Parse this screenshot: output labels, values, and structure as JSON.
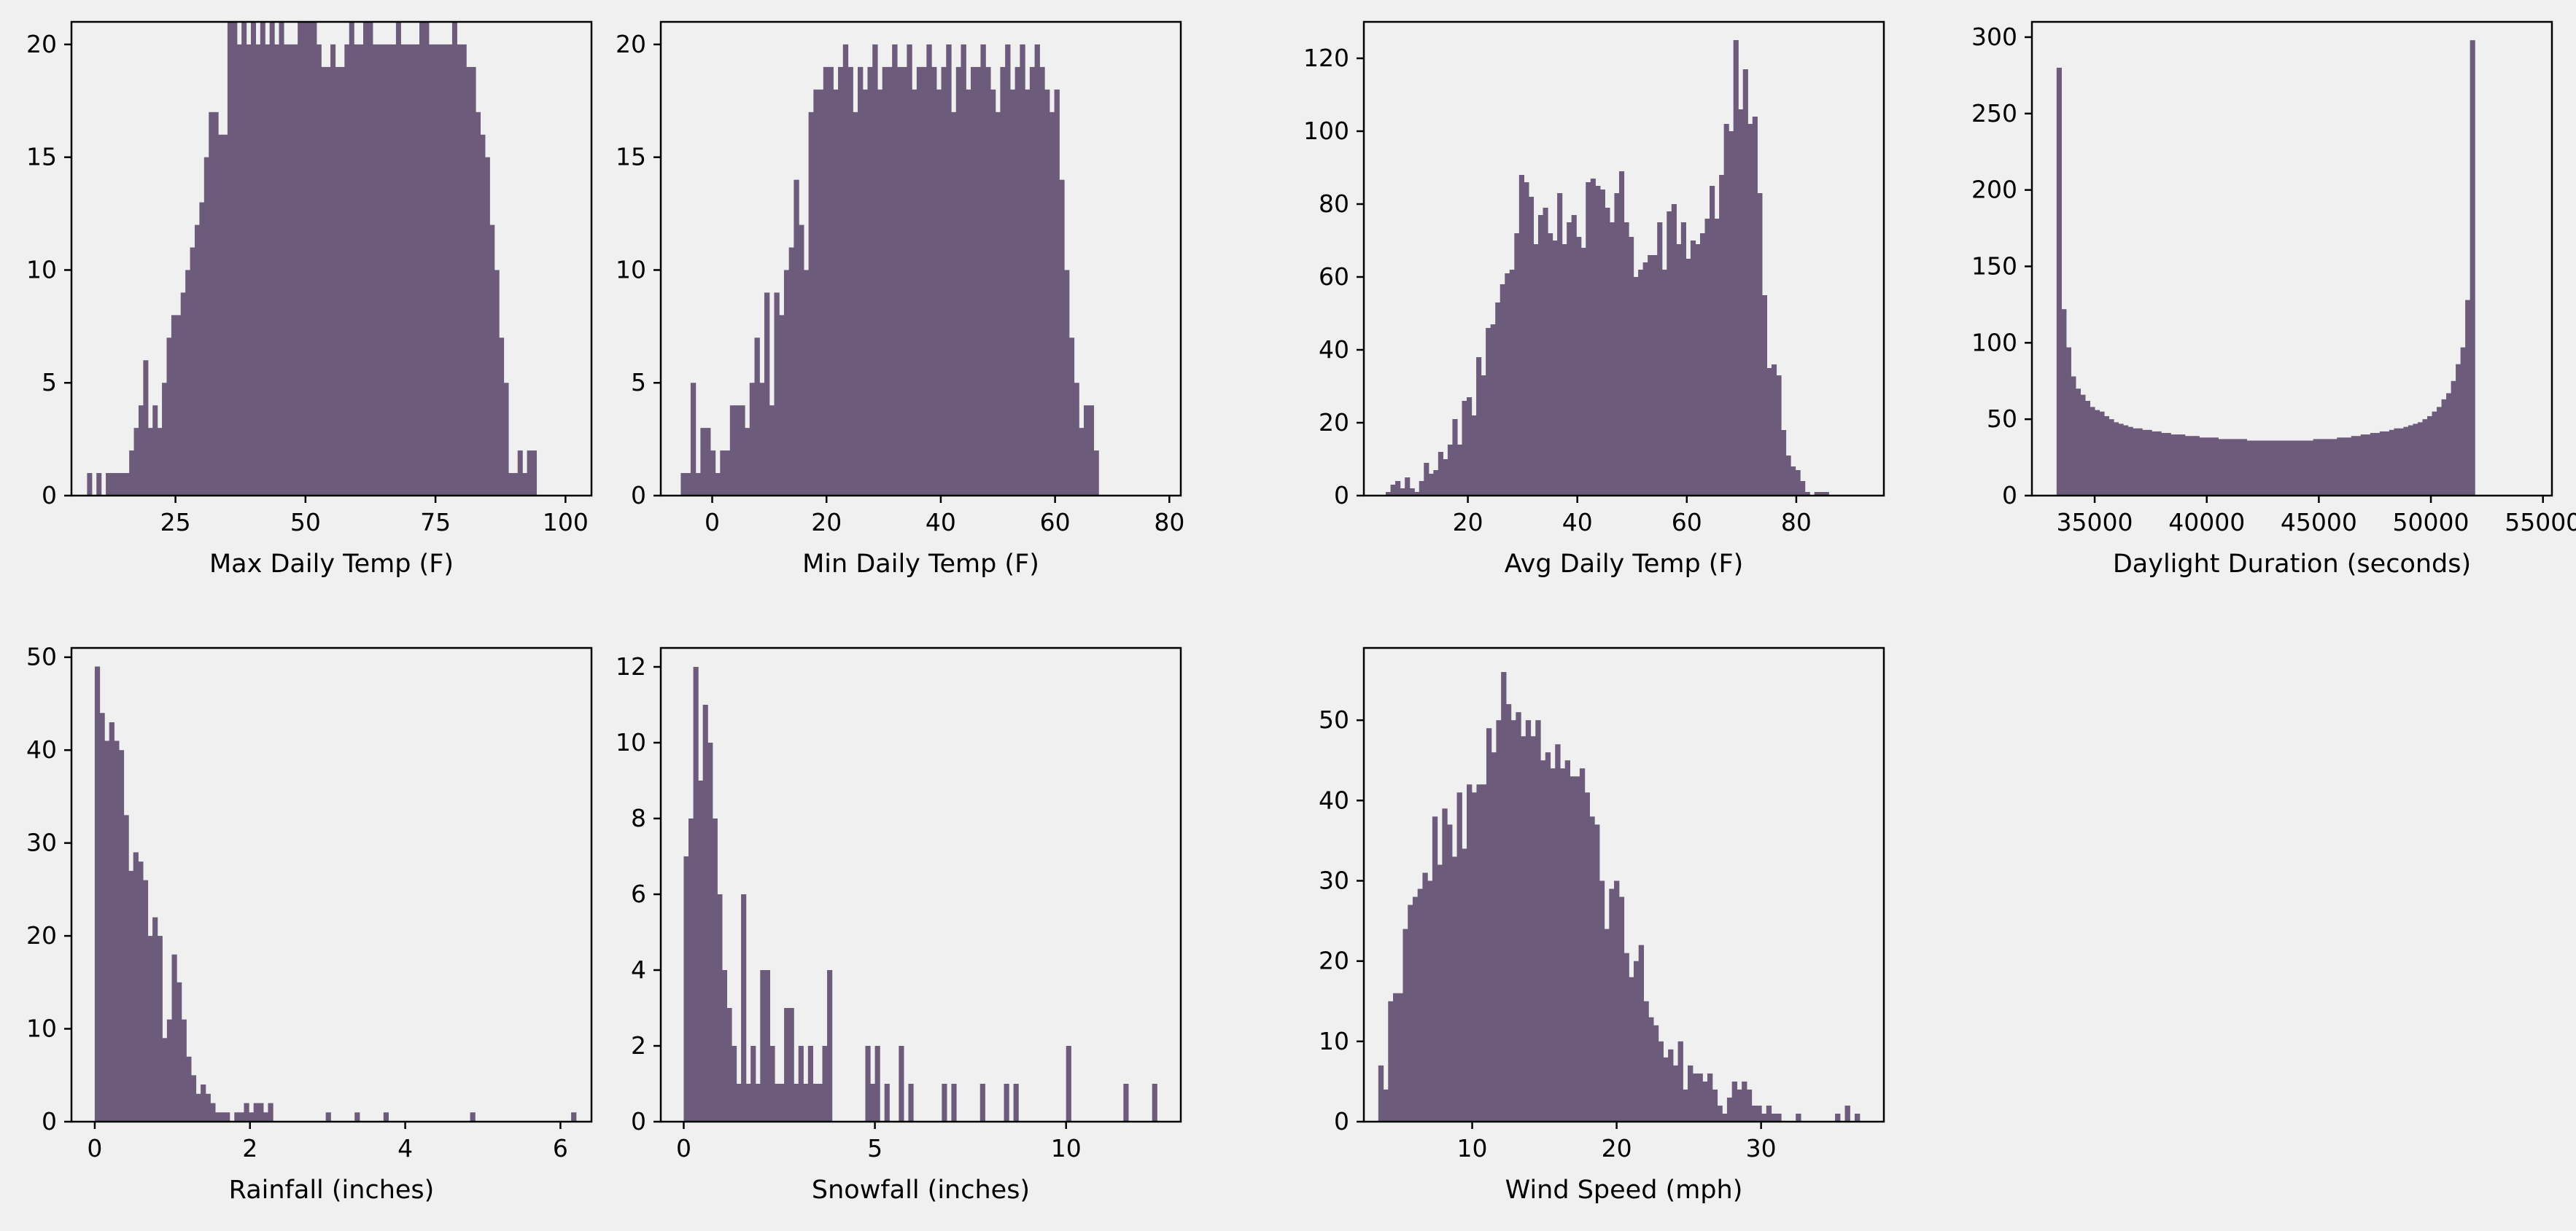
{
  "chart_data": [
    {
      "type": "bar",
      "subtype": "histogram",
      "title": "",
      "xlabel": "Max Daily Temp (F)",
      "ylabel": "",
      "bar_color": "#6c5b7b",
      "xlim": [
        5,
        105
      ],
      "ylim": [
        0,
        21
      ],
      "xticks": [
        25,
        50,
        75,
        100
      ],
      "yticks": [
        0,
        5,
        10,
        15,
        20
      ],
      "bin_start": 8,
      "bin_width": 0.9,
      "counts": [
        1,
        0,
        1,
        0,
        1,
        1,
        1,
        1,
        1,
        2,
        3,
        4,
        6,
        3,
        4,
        3,
        5,
        7,
        8,
        8,
        9,
        10,
        11,
        12,
        13,
        15,
        17,
        17,
        16,
        16,
        21,
        21,
        20,
        21,
        20,
        21,
        20,
        21,
        20,
        21,
        20,
        21,
        20,
        20,
        20,
        21,
        21,
        21,
        21,
        20,
        19,
        19,
        20,
        19,
        19,
        20,
        21,
        20,
        20,
        21,
        21,
        20,
        20,
        20,
        20,
        20,
        21,
        20,
        20,
        20,
        20,
        21,
        21,
        20,
        20,
        20,
        20,
        20,
        21,
        20,
        20,
        19,
        19,
        17,
        16,
        15,
        12,
        10,
        7,
        5,
        1,
        1,
        2,
        1,
        2,
        2
      ]
    },
    {
      "type": "bar",
      "subtype": "histogram",
      "title": "",
      "xlabel": "Min Daily Temp (F)",
      "ylabel": "",
      "bar_color": "#6c5b7b",
      "xlim": [
        -9,
        82
      ],
      "ylim": [
        0,
        21
      ],
      "xticks": [
        0,
        20,
        40,
        60,
        80
      ],
      "yticks": [
        0,
        5,
        10,
        15,
        20
      ],
      "bin_start": -5.5,
      "bin_width": 0.86,
      "counts": [
        1,
        1,
        5,
        1,
        3,
        3,
        2,
        1,
        2,
        2,
        4,
        4,
        4,
        3,
        5,
        7,
        5,
        9,
        4,
        9,
        8,
        10,
        11,
        14,
        12,
        10,
        17,
        18,
        18,
        19,
        19,
        18,
        19,
        20,
        19,
        17,
        19,
        18,
        19,
        20,
        18,
        19,
        19,
        20,
        19,
        19,
        20,
        18,
        19,
        19,
        20,
        19,
        18,
        19,
        20,
        17,
        19,
        20,
        18,
        19,
        19,
        20,
        19,
        18,
        17,
        19,
        20,
        18,
        19,
        20,
        18,
        19,
        20,
        19,
        18,
        17,
        18,
        14,
        10,
        7,
        5,
        3,
        4,
        4,
        2
      ]
    },
    {
      "type": "bar",
      "subtype": "histogram",
      "title": "",
      "xlabel": "Avg Daily Temp (F)",
      "ylabel": "",
      "bar_color": "#6c5b7b",
      "xlim": [
        1,
        96
      ],
      "ylim": [
        0,
        130
      ],
      "xticks": [
        20,
        40,
        60,
        80
      ],
      "yticks": [
        0,
        20,
        40,
        60,
        80,
        100,
        120
      ],
      "bin_start": 5,
      "bin_width": 0.87,
      "counts": [
        1,
        3,
        4,
        2,
        5,
        2,
        1,
        4,
        9,
        6,
        7,
        12,
        10,
        14,
        21,
        14,
        26,
        27,
        22,
        38,
        33,
        46,
        47,
        53,
        58,
        61,
        62,
        72,
        88,
        86,
        82,
        69,
        77,
        79,
        72,
        70,
        83,
        69,
        75,
        77,
        71,
        68,
        86,
        87,
        85,
        84,
        79,
        75,
        83,
        89,
        75,
        71,
        60,
        62,
        64,
        66,
        66,
        75,
        62,
        78,
        80,
        69,
        75,
        65,
        70,
        69,
        72,
        76,
        85,
        76,
        88,
        102,
        100,
        125,
        106,
        117,
        102,
        104,
        83,
        55,
        35,
        36,
        33,
        18,
        11,
        8,
        7,
        4,
        1,
        0,
        1,
        1,
        1,
        0
      ]
    },
    {
      "type": "bar",
      "subtype": "histogram",
      "title": "",
      "xlabel": "Daylight Duration (seconds)",
      "ylabel": "",
      "bar_color": "#6c5b7b",
      "xlim": [
        32200,
        55400
      ],
      "ylim": [
        0,
        310
      ],
      "xticks": [
        35000,
        40000,
        45000,
        50000,
        55000
      ],
      "yticks": [
        0,
        50,
        100,
        150,
        200,
        250,
        300
      ],
      "bin_start": 33300,
      "bin_width": 212,
      "counts": [
        280,
        122,
        97,
        78,
        70,
        66,
        62,
        58,
        56,
        55,
        52,
        50,
        48,
        47,
        46,
        45,
        44,
        44,
        43,
        43,
        42,
        42,
        41,
        41,
        40,
        40,
        40,
        39,
        39,
        39,
        38,
        38,
        38,
        38,
        37,
        37,
        37,
        37,
        37,
        37,
        36,
        36,
        36,
        36,
        36,
        36,
        36,
        36,
        36,
        36,
        36,
        36,
        36,
        36,
        37,
        37,
        37,
        37,
        37,
        38,
        38,
        38,
        39,
        39,
        40,
        40,
        41,
        41,
        42,
        42,
        43,
        44,
        44,
        45,
        46,
        47,
        48,
        50,
        52,
        55,
        58,
        63,
        67,
        75,
        86,
        97,
        128,
        298
      ]
    },
    {
      "type": "bar",
      "subtype": "histogram",
      "title": "",
      "xlabel": "Rainfall (inches)",
      "ylabel": "",
      "bar_color": "#6c5b7b",
      "xlim": [
        -0.3,
        6.4
      ],
      "ylim": [
        0,
        51
      ],
      "xticks": [
        0,
        2,
        4,
        6
      ],
      "yticks": [
        0,
        10,
        20,
        30,
        40,
        50
      ],
      "bin_start": 0,
      "bin_width": 0.062,
      "counts": [
        49,
        44,
        41,
        43,
        41,
        40,
        33,
        27,
        29,
        28,
        26,
        20,
        22,
        20,
        9,
        11,
        18,
        15,
        11,
        7,
        5,
        3,
        4,
        3,
        2,
        1,
        1,
        1,
        0,
        1,
        1,
        2,
        1,
        2,
        2,
        1,
        2,
        0,
        0,
        0,
        0,
        0,
        0,
        0,
        0,
        0,
        0,
        0,
        1,
        0,
        0,
        0,
        0,
        0,
        1,
        0,
        0,
        0,
        0,
        0,
        1,
        0,
        0,
        0,
        0,
        0,
        0,
        0,
        0,
        0,
        0,
        0,
        0,
        0,
        0,
        0,
        0,
        0,
        1,
        0,
        0,
        0,
        0,
        0,
        0,
        0,
        0,
        0,
        0,
        0,
        0,
        0,
        0,
        0,
        0,
        0,
        0,
        0,
        0,
        1
      ]
    },
    {
      "type": "bar",
      "subtype": "histogram",
      "title": "",
      "xlabel": "Snowfall (inches)",
      "ylabel": "",
      "bar_color": "#6c5b7b",
      "xlim": [
        -0.6,
        13
      ],
      "ylim": [
        0,
        12.5
      ],
      "xticks": [
        0,
        5,
        10
      ],
      "yticks": [
        0,
        2,
        4,
        6,
        8,
        10,
        12
      ],
      "bin_start": 0,
      "bin_width": 0.125,
      "counts": [
        7,
        8,
        12,
        9,
        11,
        10,
        8,
        6,
        4,
        3,
        2,
        1,
        6,
        1,
        2,
        1,
        4,
        4,
        2,
        1,
        1,
        3,
        3,
        1,
        2,
        1,
        2,
        1,
        1,
        2,
        4,
        0,
        0,
        0,
        0,
        0,
        0,
        0,
        2,
        1,
        2,
        0,
        1,
        0,
        0,
        2,
        0,
        1,
        0,
        0,
        0,
        0,
        0,
        0,
        1,
        0,
        1,
        0,
        0,
        0,
        0,
        0,
        1,
        0,
        0,
        0,
        0,
        1,
        0,
        1,
        0,
        0,
        0,
        0,
        0,
        0,
        0,
        0,
        0,
        0,
        2,
        0,
        0,
        0,
        0,
        0,
        0,
        0,
        0,
        0,
        0,
        0,
        1,
        0,
        0,
        0,
        0,
        0,
        1,
        0
      ]
    },
    {
      "type": "bar",
      "subtype": "histogram",
      "title": "",
      "xlabel": "Wind Speed (mph)",
      "ylabel": "",
      "bar_color": "#6c5b7b",
      "xlim": [
        2.5,
        38.5
      ],
      "ylim": [
        0,
        59
      ],
      "xticks": [
        10,
        20,
        30
      ],
      "yticks": [
        0,
        10,
        20,
        30,
        40,
        50
      ],
      "bin_start": 3.5,
      "bin_width": 0.34,
      "counts": [
        7,
        4,
        15,
        16,
        16,
        24,
        27,
        28,
        29,
        31,
        30,
        38,
        32,
        39,
        37,
        33,
        41,
        34,
        42,
        41,
        42,
        42,
        49,
        46,
        50,
        56,
        52,
        50,
        51,
        48,
        50,
        48,
        50,
        45,
        46,
        44,
        47,
        44,
        45,
        43,
        43,
        44,
        41,
        38,
        37,
        30,
        24,
        29,
        30,
        28,
        21,
        18,
        20,
        22,
        15,
        13,
        12,
        10,
        8,
        9,
        7,
        10,
        4,
        7,
        6,
        6,
        5,
        6,
        4,
        2,
        1,
        3,
        5,
        4,
        5,
        4,
        2,
        2,
        1,
        2,
        1,
        1,
        0,
        0,
        0,
        1,
        0,
        0,
        0,
        0,
        0,
        0,
        0,
        1,
        0,
        2,
        0,
        1,
        0,
        0
      ]
    }
  ]
}
